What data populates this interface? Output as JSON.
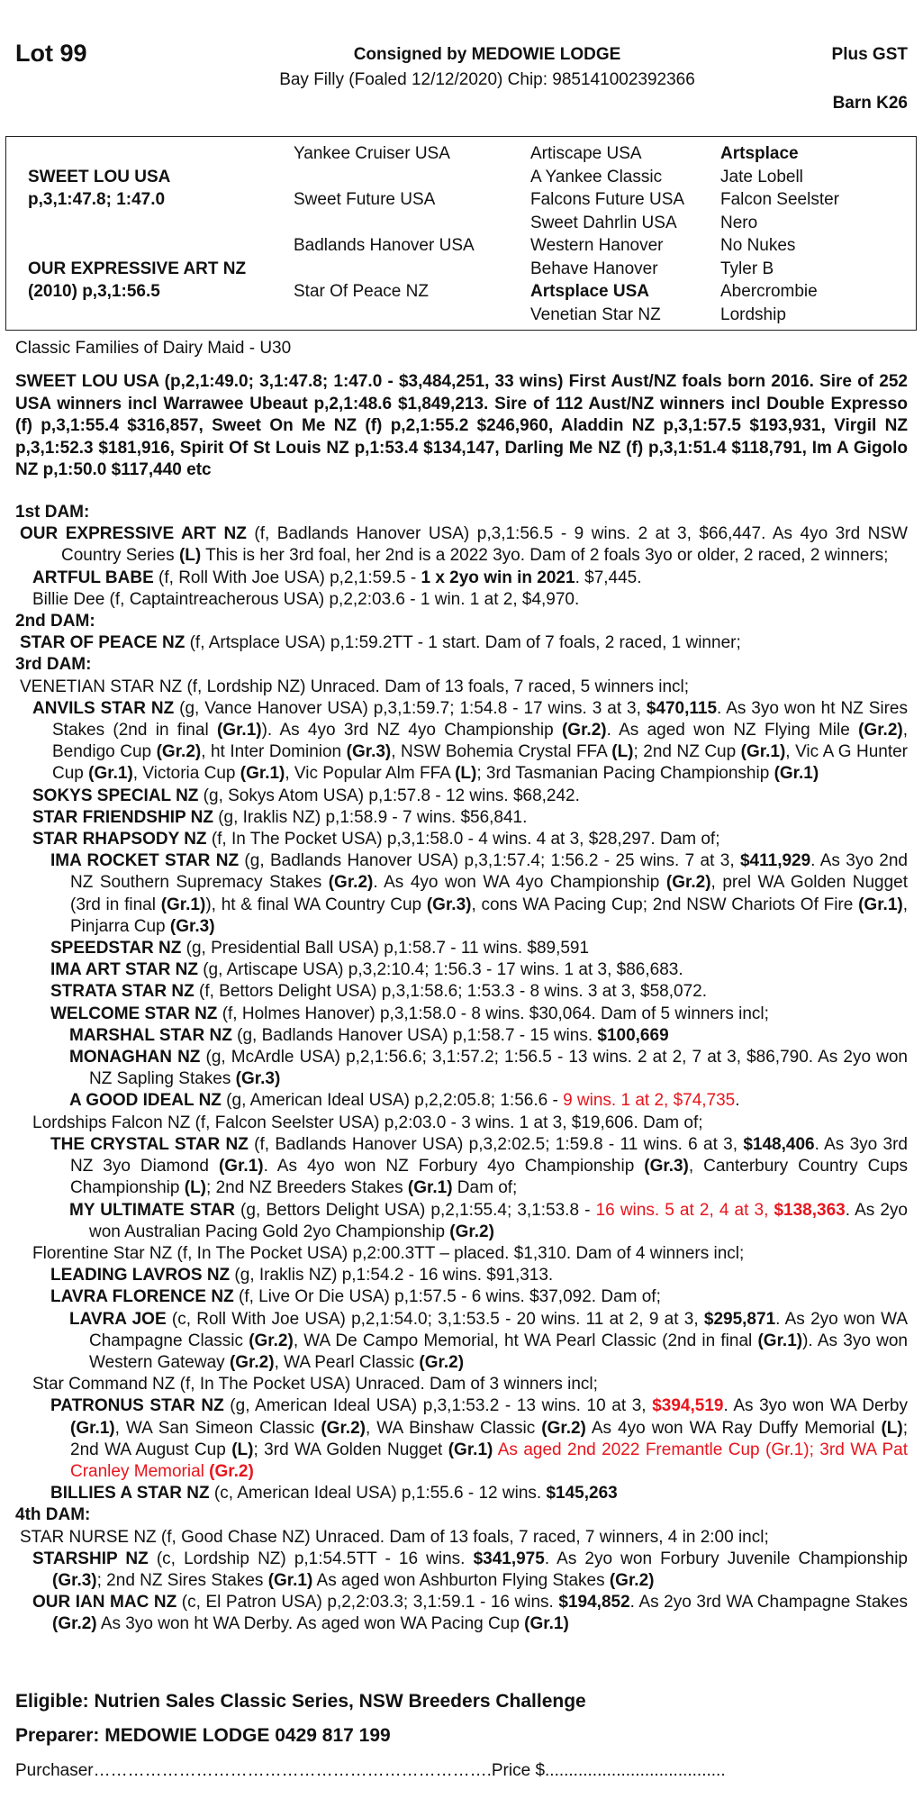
{
  "header": {
    "lot": "Lot 99",
    "consigned": "Consigned by MEDOWIE LODGE",
    "description": "Bay Filly (Foaled 12/12/2020) Chip: 985141002392366",
    "plus_gst": "Plus GST",
    "barn": "Barn K26"
  },
  "pedigree": {
    "col1": [
      "",
      "SWEET LOU USA",
      "p,3,1:47.8; 1:47.0",
      "",
      "",
      "OUR EXPRESSIVE ART NZ",
      "(2010) p,3,1:56.5",
      ""
    ],
    "col2": [
      "Yankee Cruiser USA",
      "",
      "Sweet Future USA",
      "",
      "Badlands Hanover USA",
      "",
      "Star Of Peace NZ",
      ""
    ],
    "col3": [
      "Artiscape USA",
      "A Yankee Classic",
      "Falcons Future USA",
      "Sweet Dahrlin USA",
      "Western Hanover",
      "Behave Hanover",
      "Artsplace USA",
      "Venetian Star NZ"
    ],
    "col4": [
      "Artsplace",
      "Jate Lobell",
      "Falcon Seelster",
      "Nero",
      "No Nukes",
      "Tyler B",
      "Abercrombie",
      "Lordship"
    ]
  },
  "family": "Classic Families of Dairy Maid - U30",
  "sire_text": "SWEET LOU USA (p,2,1:49.0; 3,1:47.8; 1:47.0 - $3,484,251, 33 wins) First Aust/NZ foals born 2016. Sire of 252 USA winners incl Warrawee Ubeaut p,2,1:48.6 $1,849,213. Sire of 112 Aust/NZ winners incl Double Expresso (f) p,3,1:55.4 $316,857, Sweet On Me NZ (f) p,2,1:55.2 $246,960, Aladdin NZ p,3,1:57.5 $193,931, Virgil NZ p,3,1:52.3 $181,916, Spirit Of St Louis NZ p,1:53.4 $134,147, Darling Me NZ (f) p,3,1:51.4 $118,791, Im A Gigolo NZ p,1:50.0 $117,440 etc",
  "dams": [
    {
      "lvl": "h",
      "runs": [
        {
          "t": "1st DAM:"
        }
      ]
    },
    {
      "lvl": 0,
      "hang": 46,
      "runs": [
        {
          "t": "OUR EXPRESSIVE ART NZ",
          "s": "b"
        },
        {
          "t": " (f, Badlands Hanover USA) p,3,1:56.5 - 9 wins. 2 at 3, $66,447. As 4yo 3rd NSW Country Series "
        },
        {
          "t": "(L)",
          "s": "b"
        },
        {
          "t": " This is her 3rd foal, her 2nd is a 2022 3yo. Dam of 2 foals 3yo or older, 2 raced, 2 winners;"
        }
      ]
    },
    {
      "lvl": 1,
      "runs": [
        {
          "t": "ARTFUL BABE",
          "s": "b"
        },
        {
          "t": " (f, Roll With Joe USA) p,2,1:59.5 - "
        },
        {
          "t": "1 x 2yo win in 2021",
          "s": "b"
        },
        {
          "t": ". $7,445."
        }
      ]
    },
    {
      "lvl": 1,
      "runs": [
        {
          "t": "Billie Dee (f, Captaintreacherous USA) p,2,2:03.6 - 1 win. 1 at 2, $4,970."
        }
      ]
    },
    {
      "lvl": "h",
      "runs": [
        {
          "t": "2nd DAM:"
        }
      ]
    },
    {
      "lvl": 0,
      "runs": [
        {
          "t": "STAR OF PEACE NZ",
          "s": "b"
        },
        {
          "t": " (f, Artsplace USA) p,1:59.2TT - 1 start. Dam of 7 foals, 2 raced, 1 winner;"
        }
      ]
    },
    {
      "lvl": "h",
      "runs": [
        {
          "t": "3rd DAM:"
        }
      ]
    },
    {
      "lvl": 0,
      "runs": [
        {
          "t": "VENETIAN STAR NZ (f, Lordship NZ) Unraced. Dam of 13 foals, 7 raced, 5 winners incl;"
        }
      ]
    },
    {
      "lvl": 1,
      "runs": [
        {
          "t": "ANVILS STAR NZ",
          "s": "b"
        },
        {
          "t": " (g, Vance Hanover USA) p,3,1:59.7; 1:54.8 - 17 wins. 3 at 3, "
        },
        {
          "t": "$470,115",
          "s": "b"
        },
        {
          "t": ". As 3yo won ht NZ Sires Stakes (2nd in final "
        },
        {
          "t": "(Gr.1)",
          "s": "b"
        },
        {
          "t": "). As 4yo 3rd NZ 4yo Championship "
        },
        {
          "t": "(Gr.2)",
          "s": "b"
        },
        {
          "t": ". As aged won NZ Flying Mile "
        },
        {
          "t": "(Gr.2)",
          "s": "b"
        },
        {
          "t": ", Bendigo Cup "
        },
        {
          "t": "(Gr.2)",
          "s": "b"
        },
        {
          "t": ", ht Inter Dominion "
        },
        {
          "t": "(Gr.3)",
          "s": "b"
        },
        {
          "t": ", NSW Bohemia Crystal FFA "
        },
        {
          "t": "(L)",
          "s": "b"
        },
        {
          "t": "; 2nd NZ Cup "
        },
        {
          "t": "(Gr.1)",
          "s": "b"
        },
        {
          "t": ", Vic A G Hunter Cup "
        },
        {
          "t": "(Gr.1)",
          "s": "b"
        },
        {
          "t": ", Victoria Cup "
        },
        {
          "t": "(Gr.1)",
          "s": "b"
        },
        {
          "t": ", Vic Popular Alm FFA "
        },
        {
          "t": "(L)",
          "s": "b"
        },
        {
          "t": "; 3rd Tasmanian Pacing Championship "
        },
        {
          "t": "(Gr.1)",
          "s": "b"
        }
      ]
    },
    {
      "lvl": 1,
      "runs": [
        {
          "t": "SOKYS SPECIAL NZ",
          "s": "b"
        },
        {
          "t": " (g, Sokys Atom USA) p,1:57.8 - 12 wins. $68,242."
        }
      ]
    },
    {
      "lvl": 1,
      "runs": [
        {
          "t": "STAR FRIENDSHIP NZ",
          "s": "b"
        },
        {
          "t": " (g, Iraklis NZ) p,1:58.9 - 7 wins. $56,841."
        }
      ]
    },
    {
      "lvl": 1,
      "runs": [
        {
          "t": "STAR RHAPSODY NZ",
          "s": "b"
        },
        {
          "t": " (f, In The Pocket USA) p,3,1:58.0 - 4 wins. 4 at 3, $28,297. Dam of;"
        }
      ]
    },
    {
      "lvl": 2,
      "runs": [
        {
          "t": "IMA ROCKET STAR NZ",
          "s": "b"
        },
        {
          "t": " (g, Badlands Hanover USA) p,3,1:57.4; 1:56.2 - 25 wins. 7 at 3, "
        },
        {
          "t": "$411,929",
          "s": "b"
        },
        {
          "t": ". As 3yo 2nd NZ Southern Supremacy Stakes "
        },
        {
          "t": "(Gr.2)",
          "s": "b"
        },
        {
          "t": ". As 4yo won WA 4yo Championship "
        },
        {
          "t": "(Gr.2)",
          "s": "b"
        },
        {
          "t": ", prel WA Golden Nugget (3rd in final "
        },
        {
          "t": "(Gr.1)",
          "s": "b"
        },
        {
          "t": "), ht & final WA Country Cup "
        },
        {
          "t": "(Gr.3)",
          "s": "b"
        },
        {
          "t": ", cons WA Pacing Cup; 2nd NSW Chariots Of Fire "
        },
        {
          "t": "(Gr.1)",
          "s": "b"
        },
        {
          "t": ", Pinjarra Cup "
        },
        {
          "t": "(Gr.3)",
          "s": "b"
        }
      ]
    },
    {
      "lvl": 2,
      "runs": [
        {
          "t": "SPEEDSTAR NZ",
          "s": "b"
        },
        {
          "t": " (g, Presidential Ball USA) p,1:58.7 - 11 wins. $89,591"
        }
      ]
    },
    {
      "lvl": 2,
      "runs": [
        {
          "t": "IMA ART STAR NZ",
          "s": "b"
        },
        {
          "t": " (g, Artiscape USA) p,3,2:10.4; 1:56.3 - 17 wins. 1 at 3, $86,683."
        }
      ]
    },
    {
      "lvl": 2,
      "runs": [
        {
          "t": "STRATA STAR NZ",
          "s": "b"
        },
        {
          "t": " (f, Bettors Delight USA) p,3,1:58.6; 1:53.3 - 8 wins. 3 at 3, $58,072."
        }
      ]
    },
    {
      "lvl": 2,
      "runs": [
        {
          "t": "WELCOME STAR NZ",
          "s": "b"
        },
        {
          "t": " (f, Holmes Hanover) p,3,1:58.0 - 8 wins. $30,064. Dam of 5 winners incl;"
        }
      ]
    },
    {
      "lvl": 3,
      "runs": [
        {
          "t": "MARSHAL STAR NZ",
          "s": "b"
        },
        {
          "t": " (g, Badlands Hanover USA) p,1:58.7 - 15 wins. "
        },
        {
          "t": "$100,669",
          "s": "b"
        }
      ]
    },
    {
      "lvl": 3,
      "runs": [
        {
          "t": "MONAGHAN NZ",
          "s": "b"
        },
        {
          "t": " (g, McArdle USA) p,2,1:56.6; 3,1:57.2; 1:56.5 - 13 wins. 2 at 2, 7 at 3, $86,790. As 2yo won NZ Sapling Stakes "
        },
        {
          "t": "(Gr.3)",
          "s": "b"
        }
      ]
    },
    {
      "lvl": 3,
      "runs": [
        {
          "t": "A GOOD IDEAL NZ",
          "s": "b"
        },
        {
          "t": " (g, American Ideal USA) p,2,2:05.8; 1:56.6 - "
        },
        {
          "t": "9 wins. 1 at 2, $74,735",
          "s": "r"
        },
        {
          "t": "."
        }
      ]
    },
    {
      "lvl": 1,
      "runs": [
        {
          "t": "Lordships Falcon NZ (f, Falcon Seelster USA) p,2:03.0 - 3 wins. 1 at 3, $19,606. Dam of;"
        }
      ]
    },
    {
      "lvl": 2,
      "runs": [
        {
          "t": "THE CRYSTAL STAR NZ",
          "s": "b"
        },
        {
          "t": " (f, Badlands Hanover USA) p,3,2:02.5; 1:59.8 - 11 wins. 6 at 3, "
        },
        {
          "t": "$148,406",
          "s": "b"
        },
        {
          "t": ". As 3yo 3rd NZ 3yo Diamond "
        },
        {
          "t": "(Gr.1)",
          "s": "b"
        },
        {
          "t": ". As 4yo won NZ Forbury 4yo Championship "
        },
        {
          "t": "(Gr.3)",
          "s": "b"
        },
        {
          "t": ", Canterbury Country Cups Championship "
        },
        {
          "t": "(L)",
          "s": "b"
        },
        {
          "t": "; 2nd NZ Breeders Stakes "
        },
        {
          "t": "(Gr.1)",
          "s": "b"
        },
        {
          "t": " Dam of;"
        }
      ]
    },
    {
      "lvl": 3,
      "runs": [
        {
          "t": "MY ULTIMATE STAR",
          "s": "b"
        },
        {
          "t": " (g, Bettors Delight USA) p,2,1:55.4; 3,1:53.8 - "
        },
        {
          "t": "16 wins. 5 at 2, 4 at 3, ",
          "s": "r"
        },
        {
          "t": "$138,363",
          "s": "br"
        },
        {
          "t": ". As 2yo won Australian Pacing Gold 2yo Championship "
        },
        {
          "t": "(Gr.2)",
          "s": "b"
        }
      ]
    },
    {
      "lvl": 1,
      "runs": [
        {
          "t": "Florentine Star NZ (f, In The Pocket USA) p,2:00.3TT – placed. $1,310. Dam of 4 winners incl;"
        }
      ]
    },
    {
      "lvl": 2,
      "runs": [
        {
          "t": "LEADING LAVROS NZ",
          "s": "b"
        },
        {
          "t": " (g, Iraklis NZ) p,1:54.2 - 16 wins. $91,313."
        }
      ]
    },
    {
      "lvl": 2,
      "runs": [
        {
          "t": "LAVRA FLORENCE NZ",
          "s": "b"
        },
        {
          "t": " (f, Live Or Die USA) p,1:57.5 - 6 wins. $37,092. Dam of;"
        }
      ]
    },
    {
      "lvl": 3,
      "runs": [
        {
          "t": "LAVRA JOE",
          "s": "b"
        },
        {
          "t": " (c, Roll With Joe USA) p,2,1:54.0; 3,1:53.5 - 20 wins. 11 at 2, 9 at 3, "
        },
        {
          "t": "$295,871",
          "s": "b"
        },
        {
          "t": ". As 2yo won WA Champagne Classic "
        },
        {
          "t": "(Gr.2)",
          "s": "b"
        },
        {
          "t": ", WA De Campo Memorial, ht WA Pearl Classic (2nd in final "
        },
        {
          "t": "(Gr.1)",
          "s": "b"
        },
        {
          "t": "). As 3yo won Western Gateway "
        },
        {
          "t": "(Gr.2)",
          "s": "b"
        },
        {
          "t": ", WA Pearl Classic "
        },
        {
          "t": "(Gr.2)",
          "s": "b"
        }
      ]
    },
    {
      "lvl": 1,
      "runs": [
        {
          "t": "Star Command NZ (f, In The Pocket USA) Unraced. Dam of 3 winners incl;"
        }
      ]
    },
    {
      "lvl": 2,
      "runs": [
        {
          "t": "PATRONUS STAR NZ",
          "s": "b"
        },
        {
          "t": " (g, American Ideal USA) p,3,1:53.2 - 13 wins. 10 at 3, "
        },
        {
          "t": "$394,519",
          "s": "br"
        },
        {
          "t": ". As 3yo won WA Derby "
        },
        {
          "t": "(Gr.1)",
          "s": "b"
        },
        {
          "t": ", WA San Simeon Classic "
        },
        {
          "t": "(Gr.2)",
          "s": "b"
        },
        {
          "t": ", WA Binshaw Classic "
        },
        {
          "t": "(Gr.2)",
          "s": "b"
        },
        {
          "t": " As 4yo won WA Ray Duffy Memorial "
        },
        {
          "t": "(L)",
          "s": "b"
        },
        {
          "t": "; 2nd WA August Cup "
        },
        {
          "t": "(L)",
          "s": "b"
        },
        {
          "t": "; 3rd WA Golden Nugget "
        },
        {
          "t": "(Gr.1)",
          "s": "b"
        },
        {
          "t": " As aged 2nd 2022 Fremantle Cup (Gr.1); 3rd WA Pat Cranley Memorial ",
          "s": "r"
        },
        {
          "t": "(Gr.2)",
          "s": "br"
        }
      ]
    },
    {
      "lvl": 2,
      "runs": [
        {
          "t": "BILLIES A STAR NZ",
          "s": "b"
        },
        {
          "t": " (c, American Ideal USA) p,1:55.6 - 12 wins. "
        },
        {
          "t": "$145,263",
          "s": "b"
        }
      ]
    },
    {
      "lvl": "h",
      "runs": [
        {
          "t": "4th DAM:"
        }
      ]
    },
    {
      "lvl": 0,
      "runs": [
        {
          "t": "STAR NURSE NZ (f, Good Chase NZ) Unraced. Dam of 13 foals, 7 raced, 7 winners, 4 in 2:00 incl;"
        }
      ]
    },
    {
      "lvl": 1,
      "runs": [
        {
          "t": "STARSHIP NZ",
          "s": "b"
        },
        {
          "t": " (c, Lordship NZ) p,1:54.5TT - 16 wins. "
        },
        {
          "t": "$341,975",
          "s": "b"
        },
        {
          "t": ". As 2yo won Forbury Juvenile Championship "
        },
        {
          "t": "(Gr.3)",
          "s": "b"
        },
        {
          "t": "; 2nd NZ Sires Stakes "
        },
        {
          "t": "(Gr.1)",
          "s": "b"
        },
        {
          "t": " As aged won Ashburton Flying Stakes "
        },
        {
          "t": "(Gr.2)",
          "s": "b"
        }
      ]
    },
    {
      "lvl": 1,
      "runs": [
        {
          "t": "OUR IAN MAC NZ",
          "s": "b"
        },
        {
          "t": " (c, El Patron USA) p,2,2:03.3; 3,1:59.1 - 16 wins. "
        },
        {
          "t": "$194,852",
          "s": "b"
        },
        {
          "t": ". As 2yo 3rd WA Champagne Stakes "
        },
        {
          "t": "(Gr.2)",
          "s": "b"
        },
        {
          "t": " As 3yo won ht WA Derby. As aged won WA Pacing Cup "
        },
        {
          "t": "(Gr.1)",
          "s": "b"
        }
      ]
    }
  ],
  "footer": {
    "eligible": "Eligible: Nutrien Sales Classic Series, NSW Breeders Challenge",
    "preparer": "Preparer: MEDOWIE LODGE 0429 817 199",
    "purchaser": "Purchaser…………………………………………………………….Price $......................................"
  },
  "colors": {
    "highlight": "#e8141c",
    "text": "#111111"
  }
}
